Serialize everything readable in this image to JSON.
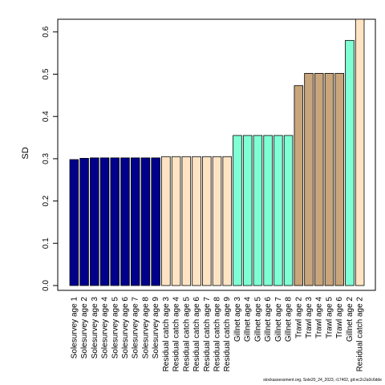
{
  "chart_data": {
    "type": "bar",
    "title": "",
    "xlabel": "",
    "ylabel": "SD",
    "ylim": [
      0,
      0.63
    ],
    "yticks": [
      0.0,
      0.1,
      0.2,
      0.3,
      0.4,
      0.5,
      0.6
    ],
    "ytick_labels": [
      "0.0",
      "0.1",
      "0.2",
      "0.3",
      "0.4",
      "0.5",
      "0.6"
    ],
    "grid": false,
    "legend": "none",
    "categories": [
      "Solesurvey age 1",
      "Solesurvey age 2",
      "Solesurvey age 3",
      "Solesurvey age 4",
      "Solesurvey age 5",
      "Solesurvey age 6",
      "Solesurvey age 7",
      "Solesurvey age 8",
      "Solesurvey age 9",
      "Residual catch age 3",
      "Residual catch age 4",
      "Residual catch age 5",
      "Residual catch age 6",
      "Residual catch age 7",
      "Residual catch age 8",
      "Residual catch age 9",
      "Gillnet age 3",
      "Gillnet age 4",
      "Gillnet age 5",
      "Gillnet age 6",
      "Gillnet age 7",
      "Gillnet age 8",
      "Trawl age 2",
      "Trawl age 3",
      "Trawl age 4",
      "Trawl age 5",
      "Trawl age 6",
      "Gillnet age 2",
      "Residual catch age 2"
    ],
    "values": [
      0.298,
      0.301,
      0.302,
      0.302,
      0.302,
      0.302,
      0.302,
      0.302,
      0.302,
      0.305,
      0.305,
      0.305,
      0.305,
      0.305,
      0.305,
      0.305,
      0.355,
      0.355,
      0.355,
      0.355,
      0.355,
      0.355,
      0.473,
      0.502,
      0.502,
      0.502,
      0.502,
      0.58,
      0.63
    ],
    "colors": [
      "#00008B",
      "#00008B",
      "#00008B",
      "#00008B",
      "#00008B",
      "#00008B",
      "#00008B",
      "#00008B",
      "#00008B",
      "#FFE4C4",
      "#FFE4C4",
      "#FFE4C4",
      "#FFE4C4",
      "#FFE4C4",
      "#FFE4C4",
      "#FFE4C4",
      "#7FFFD4",
      "#7FFFD4",
      "#7FFFD4",
      "#7FFFD4",
      "#7FFFD4",
      "#7FFFD4",
      "#C8A57A",
      "#C8A57A",
      "#C8A57A",
      "#C8A57A",
      "#C8A57A",
      "#7FFFD4",
      "#FFE4C4"
    ]
  },
  "footer_text": "stockassessment.org, Sole20_24_2023, r17402, git:ec2c2a0c6dde"
}
